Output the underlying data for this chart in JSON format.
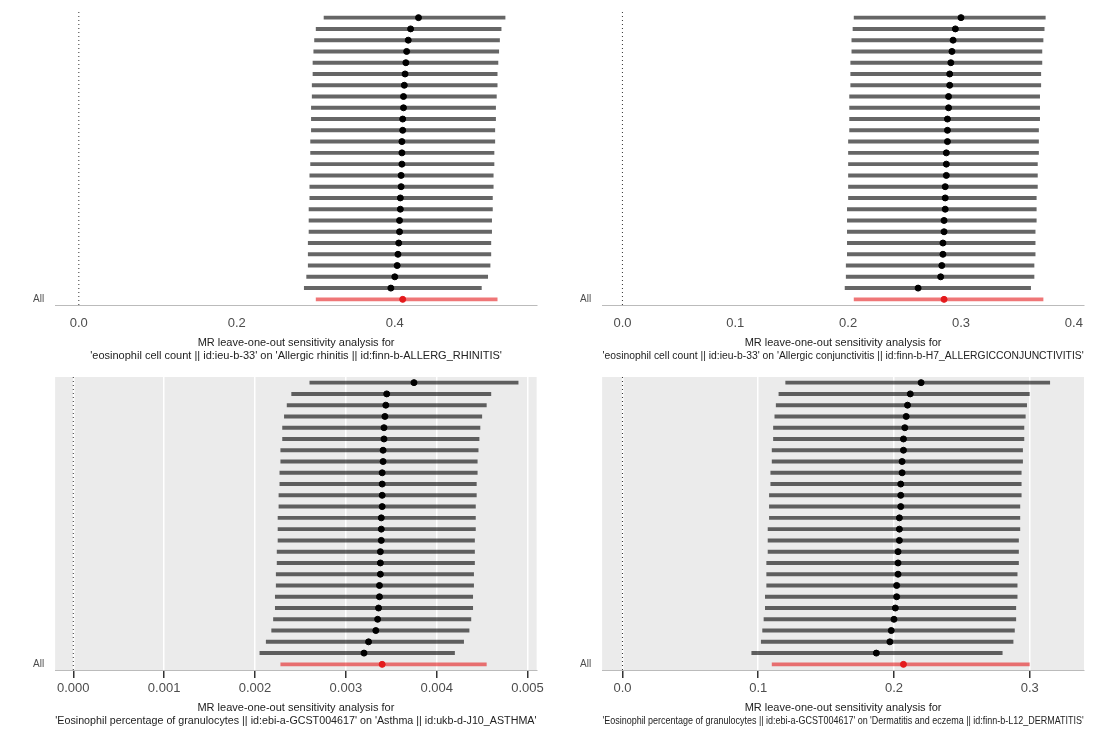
{
  "chart_data": [
    {
      "type": "scatter",
      "orientation": "horizontal",
      "xlabel": "MR leave-one-out sensitivity analysis for\n'eosinophil cell count || id:ieu-b-33' on 'Allergic rhinitis || id:finn-b-ALLERG_RHINITIS'",
      "categories": [
        null,
        null,
        null,
        null,
        null,
        null,
        null,
        null,
        null,
        null,
        null,
        null,
        null,
        null,
        null,
        null,
        null,
        null,
        null,
        null,
        null,
        null,
        null,
        null,
        null,
        "All"
      ],
      "values": [
        0.43,
        0.42,
        0.417,
        0.415,
        0.414,
        0.413,
        0.412,
        0.411,
        0.411,
        0.41,
        0.41,
        0.409,
        0.409,
        0.409,
        0.408,
        0.408,
        0.407,
        0.407,
        0.406,
        0.406,
        0.405,
        0.404,
        0.403,
        0.4,
        0.395,
        0.41
      ],
      "errors": [
        [
          0.31,
          0.54
        ],
        [
          0.3,
          0.535
        ],
        [
          0.298,
          0.533
        ],
        [
          0.297,
          0.532
        ],
        [
          0.296,
          0.531
        ],
        [
          0.296,
          0.53
        ],
        [
          0.295,
          0.53
        ],
        [
          0.295,
          0.529
        ],
        [
          0.294,
          0.528
        ],
        [
          0.294,
          0.528
        ],
        [
          0.294,
          0.527
        ],
        [
          0.293,
          0.527
        ],
        [
          0.293,
          0.526
        ],
        [
          0.293,
          0.526
        ],
        [
          0.292,
          0.525
        ],
        [
          0.292,
          0.525
        ],
        [
          0.292,
          0.524
        ],
        [
          0.291,
          0.524
        ],
        [
          0.291,
          0.523
        ],
        [
          0.291,
          0.523
        ],
        [
          0.29,
          0.522
        ],
        [
          0.29,
          0.522
        ],
        [
          0.29,
          0.521
        ],
        [
          0.288,
          0.518
        ],
        [
          0.285,
          0.51
        ],
        [
          0.3,
          0.53
        ]
      ],
      "colors": [
        "#000000",
        "#000000",
        "#000000",
        "#000000",
        "#000000",
        "#000000",
        "#000000",
        "#000000",
        "#000000",
        "#000000",
        "#000000",
        "#000000",
        "#000000",
        "#000000",
        "#000000",
        "#000000",
        "#000000",
        "#000000",
        "#000000",
        "#000000",
        "#000000",
        "#000000",
        "#000000",
        "#000000",
        "#000000",
        "#e41a1c"
      ],
      "xlim": [
        -0.03,
        0.58
      ],
      "xticks": [
        {
          "value": 0,
          "label": "0.0"
        },
        {
          "value": 0.2,
          "label": "0.2"
        },
        {
          "value": 0.4,
          "label": "0.4"
        }
      ],
      "ref_lines": [
        {
          "axis": "x",
          "value": 0,
          "line_style": "dotted"
        }
      ]
    },
    {
      "type": "scatter",
      "orientation": "horizontal",
      "xlabel": "MR leave-one-out sensitivity analysis for\n'eosinophil cell count || id:ieu-b-33' on 'Allergic conjunctivitis || id:finn-b-H7_ALLERGICCONJUNCTIVITIS'",
      "categories": [
        null,
        null,
        null,
        null,
        null,
        null,
        null,
        null,
        null,
        null,
        null,
        null,
        null,
        null,
        null,
        null,
        null,
        null,
        null,
        null,
        null,
        null,
        null,
        null,
        null,
        "All"
      ],
      "values": [
        0.3,
        0.295,
        0.293,
        0.292,
        0.291,
        0.29,
        0.29,
        0.289,
        0.289,
        0.288,
        0.288,
        0.288,
        0.287,
        0.287,
        0.287,
        0.286,
        0.286,
        0.286,
        0.285,
        0.285,
        0.284,
        0.284,
        0.283,
        0.282,
        0.262,
        0.285
      ],
      "errors": [
        [
          0.205,
          0.375
        ],
        [
          0.204,
          0.374
        ],
        [
          0.203,
          0.373
        ],
        [
          0.203,
          0.372
        ],
        [
          0.202,
          0.372
        ],
        [
          0.202,
          0.371
        ],
        [
          0.202,
          0.371
        ],
        [
          0.201,
          0.37
        ],
        [
          0.201,
          0.37
        ],
        [
          0.201,
          0.37
        ],
        [
          0.201,
          0.369
        ],
        [
          0.2,
          0.369
        ],
        [
          0.2,
          0.369
        ],
        [
          0.2,
          0.368
        ],
        [
          0.2,
          0.368
        ],
        [
          0.2,
          0.368
        ],
        [
          0.2,
          0.367
        ],
        [
          0.199,
          0.367
        ],
        [
          0.199,
          0.367
        ],
        [
          0.199,
          0.366
        ],
        [
          0.199,
          0.366
        ],
        [
          0.199,
          0.366
        ],
        [
          0.198,
          0.365
        ],
        [
          0.198,
          0.365
        ],
        [
          0.197,
          0.362
        ],
        [
          0.205,
          0.373
        ]
      ],
      "colors": [
        "#000000",
        "#000000",
        "#000000",
        "#000000",
        "#000000",
        "#000000",
        "#000000",
        "#000000",
        "#000000",
        "#000000",
        "#000000",
        "#000000",
        "#000000",
        "#000000",
        "#000000",
        "#000000",
        "#000000",
        "#000000",
        "#000000",
        "#000000",
        "#000000",
        "#000000",
        "#000000",
        "#000000",
        "#000000",
        "#e41a1c"
      ],
      "xlim": [
        -0.018,
        0.409
      ],
      "xticks": [
        {
          "value": 0,
          "label": "0.0"
        },
        0.1,
        0.2,
        0.3,
        0.4
      ],
      "ref_lines": [
        {
          "axis": "x",
          "value": 0,
          "line_style": "dotted"
        }
      ]
    },
    {
      "type": "scatter",
      "orientation": "horizontal",
      "grid": "x",
      "xlabel": "MR leave-one-out sensitivity analysis for\n'Eosinophil percentage of granulocytes || id:ebi-a-GCST004617' on 'Asthma || id:ukb-d-J10_ASTHMA'",
      "categories": [
        null,
        null,
        null,
        null,
        null,
        null,
        null,
        null,
        null,
        null,
        null,
        null,
        null,
        null,
        null,
        null,
        null,
        null,
        null,
        null,
        null,
        null,
        null,
        null,
        null,
        "All"
      ],
      "values": [
        0.00375,
        0.00345,
        0.00344,
        0.00343,
        0.00342,
        0.00342,
        0.00341,
        0.00341,
        0.0034,
        0.0034,
        0.0034,
        0.0034,
        0.00339,
        0.00339,
        0.00339,
        0.00338,
        0.00338,
        0.00338,
        0.00337,
        0.00337,
        0.00336,
        0.00335,
        0.00333,
        0.00325,
        0.0032,
        0.0034
      ],
      "errors": [
        [
          0.0026,
          0.0049
        ],
        [
          0.0024,
          0.0046
        ],
        [
          0.00235,
          0.00455
        ],
        [
          0.00232,
          0.0045
        ],
        [
          0.0023,
          0.00448
        ],
        [
          0.0023,
          0.00447
        ],
        [
          0.00228,
          0.00446
        ],
        [
          0.00228,
          0.00445
        ],
        [
          0.00227,
          0.00445
        ],
        [
          0.00227,
          0.00444
        ],
        [
          0.00226,
          0.00444
        ],
        [
          0.00226,
          0.00443
        ],
        [
          0.00225,
          0.00443
        ],
        [
          0.00225,
          0.00443
        ],
        [
          0.00225,
          0.00442
        ],
        [
          0.00224,
          0.00442
        ],
        [
          0.00224,
          0.00442
        ],
        [
          0.00223,
          0.00441
        ],
        [
          0.00223,
          0.00441
        ],
        [
          0.00222,
          0.0044
        ],
        [
          0.00222,
          0.0044
        ],
        [
          0.0022,
          0.00438
        ],
        [
          0.00218,
          0.00436
        ],
        [
          0.00212,
          0.0043
        ],
        [
          0.00205,
          0.0042
        ],
        [
          0.00228,
          0.00455
        ]
      ],
      "colors": [
        "#000000",
        "#000000",
        "#000000",
        "#000000",
        "#000000",
        "#000000",
        "#000000",
        "#000000",
        "#000000",
        "#000000",
        "#000000",
        "#000000",
        "#000000",
        "#000000",
        "#000000",
        "#000000",
        "#000000",
        "#000000",
        "#000000",
        "#000000",
        "#000000",
        "#000000",
        "#000000",
        "#000000",
        "#000000",
        "#e41a1c"
      ],
      "xlim": [
        -0.0002,
        0.0051
      ],
      "xticks": [
        {
          "value": 0,
          "label": "0.000"
        },
        0.001,
        0.002,
        0.003,
        0.004,
        0.005
      ],
      "ref_lines": [
        {
          "axis": "x",
          "value": 0,
          "line_style": "dotted"
        }
      ]
    },
    {
      "type": "scatter",
      "orientation": "horizontal",
      "grid": "x",
      "xlabel": "MR leave-one-out sensitivity analysis for\n'Eosinophil percentage of granulocytes || id:ebi-a-GCST004617' on 'Dermatitis and eczema || id:finn-b-L12_DERMATITIS'",
      "categories": [
        null,
        null,
        null,
        null,
        null,
        null,
        null,
        null,
        null,
        null,
        null,
        null,
        null,
        null,
        null,
        null,
        null,
        null,
        null,
        null,
        null,
        null,
        null,
        null,
        null,
        "All"
      ],
      "values": [
        0.22,
        0.212,
        0.21,
        0.209,
        0.208,
        0.207,
        0.207,
        0.206,
        0.206,
        0.205,
        0.205,
        0.205,
        0.204,
        0.204,
        0.204,
        0.203,
        0.203,
        0.203,
        0.202,
        0.202,
        0.201,
        0.2,
        0.198,
        0.197,
        0.187,
        0.207
      ],
      "errors": [
        [
          0.12,
          0.315
        ],
        [
          0.115,
          0.3
        ],
        [
          0.113,
          0.298
        ],
        [
          0.112,
          0.297
        ],
        [
          0.111,
          0.296
        ],
        [
          0.111,
          0.296
        ],
        [
          0.11,
          0.295
        ],
        [
          0.11,
          0.295
        ],
        [
          0.109,
          0.294
        ],
        [
          0.109,
          0.294
        ],
        [
          0.108,
          0.294
        ],
        [
          0.108,
          0.293
        ],
        [
          0.108,
          0.293
        ],
        [
          0.107,
          0.293
        ],
        [
          0.107,
          0.292
        ],
        [
          0.107,
          0.292
        ],
        [
          0.106,
          0.292
        ],
        [
          0.106,
          0.291
        ],
        [
          0.106,
          0.291
        ],
        [
          0.105,
          0.291
        ],
        [
          0.105,
          0.29
        ],
        [
          0.104,
          0.29
        ],
        [
          0.103,
          0.289
        ],
        [
          0.102,
          0.288
        ],
        [
          0.095,
          0.28
        ],
        [
          0.11,
          0.3
        ]
      ],
      "colors": [
        "#000000",
        "#000000",
        "#000000",
        "#000000",
        "#000000",
        "#000000",
        "#000000",
        "#000000",
        "#000000",
        "#000000",
        "#000000",
        "#000000",
        "#000000",
        "#000000",
        "#000000",
        "#000000",
        "#000000",
        "#000000",
        "#000000",
        "#000000",
        "#000000",
        "#000000",
        "#000000",
        "#000000",
        "#000000",
        "#e41a1c"
      ],
      "xlim": [
        -0.015,
        0.34
      ],
      "xticks": [
        {
          "value": 0,
          "label": "0.0"
        },
        0.1,
        0.2,
        0.3
      ],
      "ref_lines": [
        {
          "axis": "x",
          "value": 0,
          "line_style": "dotted"
        }
      ]
    }
  ]
}
